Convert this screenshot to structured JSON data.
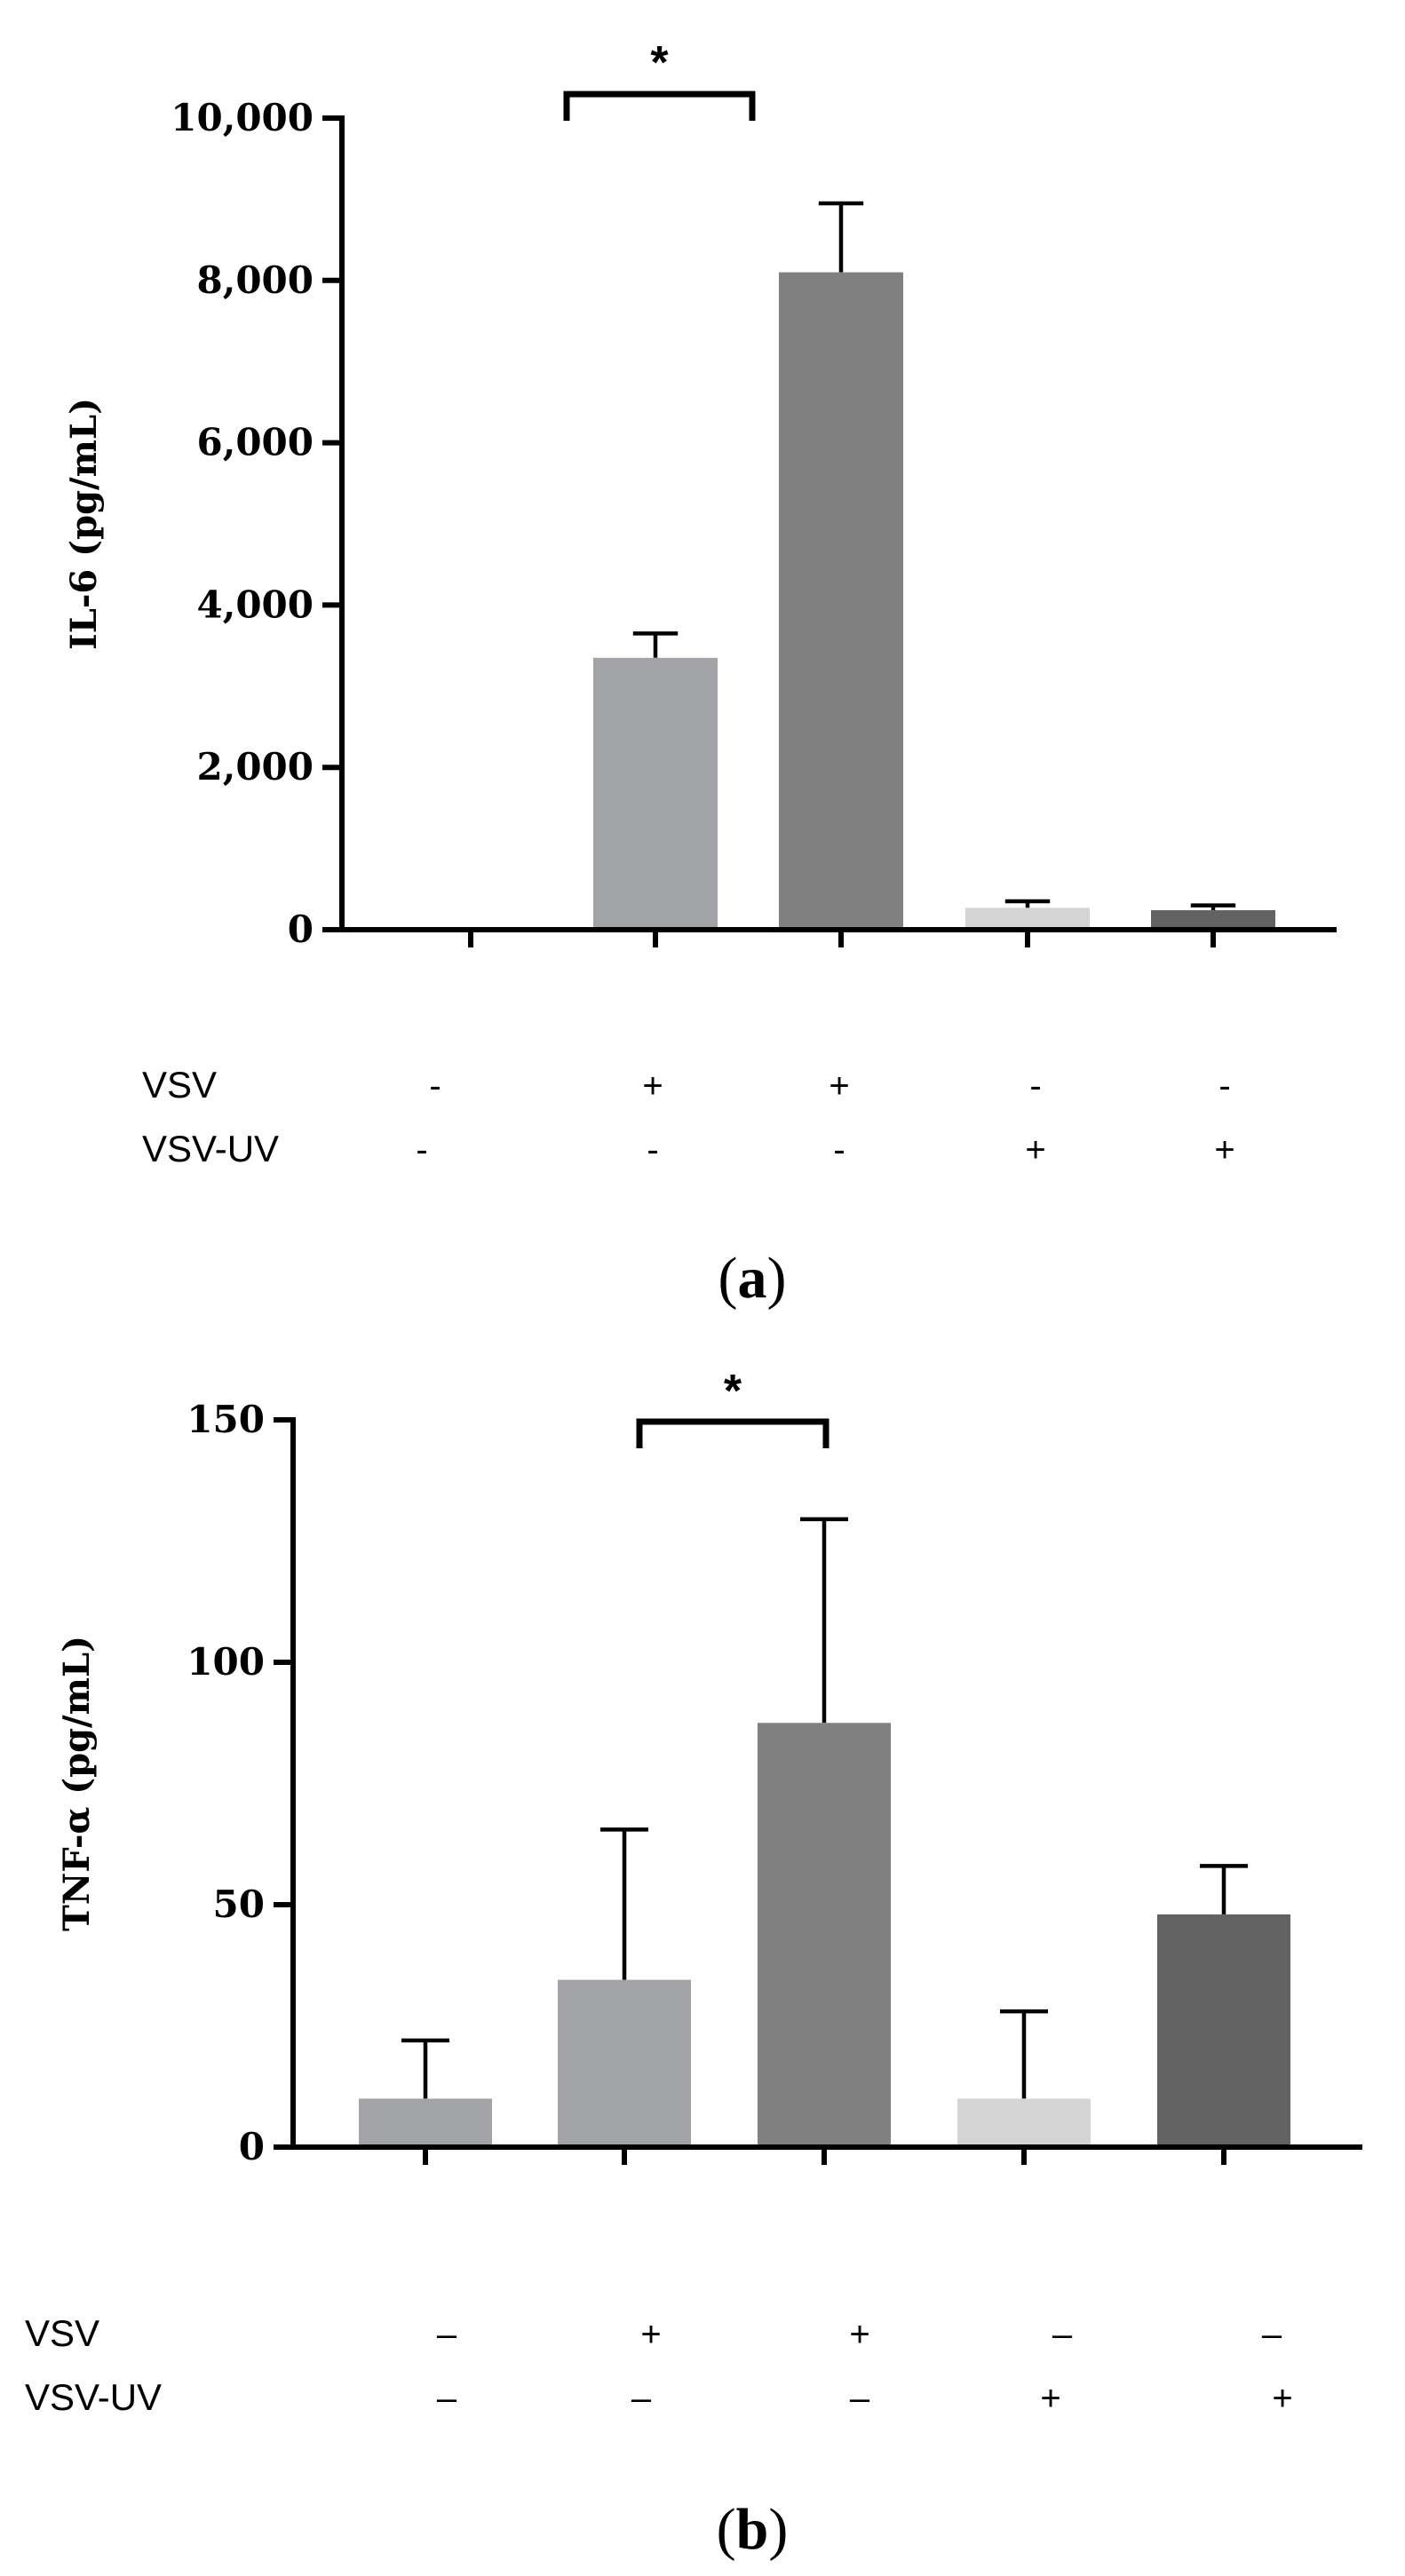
{
  "chart_data": [
    {
      "panel": "a",
      "type": "bar",
      "ylabel": "IL-6 (pg/mL)",
      "ylim": [
        0,
        10000
      ],
      "yticks": [
        "0",
        "2,000",
        "4,000",
        "6,000",
        "8,000",
        "10,000"
      ],
      "ytick_values": [
        0,
        2000,
        4000,
        6000,
        8000,
        10000
      ],
      "values": [
        0,
        3350,
        8100,
        270,
        240
      ],
      "errors": [
        0,
        300,
        850,
        80,
        60
      ],
      "colors": [
        "#a2a3a6",
        "#a2a3a6",
        "#808080",
        "#d4d4d4",
        "#626262"
      ],
      "conditions": [
        {
          "label": "VSV",
          "symbols": [
            "-",
            "+",
            "+",
            "-",
            "-"
          ]
        },
        {
          "label": "VSV-UV",
          "symbols": [
            "-",
            "-",
            "-",
            "+",
            "+"
          ]
        }
      ],
      "significance": {
        "from_bar": 1,
        "to_bar": 2,
        "label": "*"
      },
      "panel_label": {
        "open": "(",
        "letter": "a",
        "close": ")"
      }
    },
    {
      "panel": "b",
      "type": "bar",
      "ylabel": "TNF-α (pg/mL)",
      "ylim": [
        0,
        150
      ],
      "yticks": [
        "0",
        "50",
        "100",
        "150"
      ],
      "ytick_values": [
        0,
        50,
        100,
        150
      ],
      "values": [
        10,
        34.5,
        87.5,
        10,
        48
      ],
      "errors": [
        12,
        31,
        42,
        18,
        10
      ],
      "colors": [
        "#a2a3a6",
        "#a2a3a6",
        "#808080",
        "#d4d4d4",
        "#626262"
      ],
      "conditions": [
        {
          "label": "VSV",
          "symbols": [
            "–",
            "+",
            "+",
            "–",
            "–"
          ]
        },
        {
          "label": "VSV-UV",
          "symbols": [
            "–",
            "–",
            "–",
            "+",
            "+"
          ]
        }
      ],
      "significance": {
        "from_bar": 1,
        "to_bar": 2,
        "label": "*"
      },
      "panel_label": {
        "open": "(",
        "letter": "b",
        "close": ")"
      }
    }
  ]
}
